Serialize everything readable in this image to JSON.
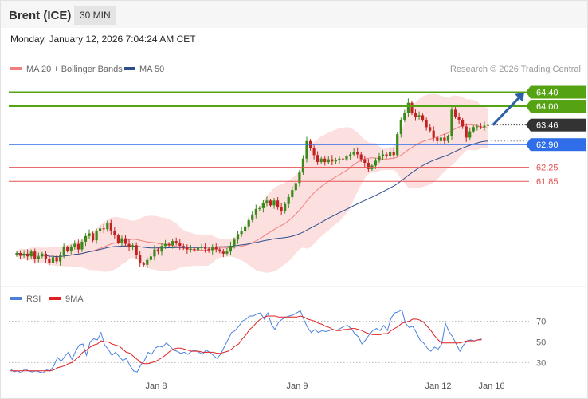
{
  "header": {
    "instrument": "Brent (ICE)",
    "timeframe": "30 MIN"
  },
  "datetime": "Monday, January 12, 2026 7:04:24 AM CET",
  "credit": "Research © 2026 Trading Central",
  "colors": {
    "up_candle": "#3a8a1a",
    "down_candle": "#c22222",
    "ma20": "#f08080",
    "bands_fill": "#fbd6d6",
    "ma50": "#2d4f8e",
    "resistance": "#55a313",
    "pivot": "#2f6ee8",
    "support": "#e45555",
    "current_price": "#333333",
    "rsi": "#4a7fe0",
    "rsi_ma": "#e02020",
    "arrow": "#2d5fa8"
  },
  "chart_data": [
    {
      "type": "candlestick",
      "legend": [
        {
          "name": "MA 20 + Bollinger Bands",
          "color": "#f08080"
        },
        {
          "name": "MA 50",
          "color": "#2d4f8e"
        }
      ],
      "ylim": [
        59.0,
        64.8
      ],
      "levels": [
        {
          "value": 64.4,
          "label": "64.40",
          "kind": "resistance"
        },
        {
          "value": 64.0,
          "label": "64.00",
          "kind": "resistance"
        },
        {
          "value": 63.46,
          "label": "63.46",
          "kind": "current"
        },
        {
          "value": 62.9,
          "label": "62.90",
          "kind": "pivot"
        },
        {
          "value": 62.25,
          "label": "62.25",
          "kind": "support"
        },
        {
          "value": 61.85,
          "label": "61.85",
          "kind": "support"
        }
      ],
      "x_labels": [
        "Jan 8",
        "Jan 9",
        "Jan 12",
        "Jan 16"
      ],
      "close": [
        59.8,
        59.72,
        59.78,
        59.7,
        59.84,
        59.62,
        59.7,
        59.78,
        59.62,
        59.52,
        59.68,
        59.56,
        59.74,
        59.96,
        59.86,
        59.96,
        60.06,
        59.9,
        60.12,
        60.28,
        60.36,
        60.16,
        60.42,
        60.5,
        60.48,
        60.66,
        60.44,
        60.3,
        60.1,
        60.22,
        60.06,
        59.96,
        60.02,
        59.74,
        59.5,
        59.46,
        59.6,
        59.7,
        59.9,
        59.84,
        60.0,
        60.06,
        60.02,
        60.14,
        60.08,
        60.0,
        59.96,
        59.9,
        59.92,
        59.88,
        59.94,
        59.96,
        59.92,
        59.88,
        59.96,
        59.9,
        59.84,
        59.78,
        59.84,
        60.0,
        60.18,
        60.34,
        60.42,
        60.56,
        60.74,
        60.9,
        61.06,
        61.08,
        61.22,
        61.3,
        61.16,
        61.3,
        61.1,
        61.0,
        61.2,
        61.4,
        61.6,
        61.8,
        62.1,
        62.5,
        63.0,
        62.8,
        62.6,
        62.4,
        62.5,
        62.4,
        62.48,
        62.42,
        62.46,
        62.5,
        62.48,
        62.56,
        62.62,
        62.7,
        62.62,
        62.48,
        62.38,
        62.2,
        62.3,
        62.44,
        62.56,
        62.62,
        62.58,
        62.7,
        62.6,
        63.2,
        63.6,
        63.8,
        64.1,
        63.82,
        63.7,
        63.74,
        63.6,
        63.4,
        63.3,
        63.1,
        63.0,
        63.1,
        63.0,
        63.14,
        63.9,
        63.7,
        63.6,
        63.42,
        63.1,
        63.28,
        63.4,
        63.42,
        63.4,
        63.44,
        63.46
      ],
      "rsi": {
        "name": "RSI",
        "ma_name": "9MA",
        "ylim": [
          18,
          85
        ],
        "ticks": [
          70,
          50,
          30
        ],
        "values": [
          24,
          21,
          22,
          20,
          24,
          22,
          21,
          22,
          21,
          20,
          23,
          22,
          27,
          35,
          31,
          36,
          40,
          33,
          41,
          47,
          48,
          37,
          50,
          53,
          52,
          59,
          47,
          43,
          37,
          40,
          36,
          32,
          34,
          27,
          22,
          21,
          28,
          32,
          40,
          38,
          44,
          46,
          45,
          49,
          46,
          42,
          41,
          39,
          40,
          38,
          41,
          42,
          40,
          38,
          42,
          40,
          37,
          34,
          38,
          45,
          52,
          59,
          61,
          65,
          70,
          72,
          75,
          75,
          77,
          78,
          72,
          78,
          67,
          62,
          69,
          72,
          74,
          75,
          76,
          78,
          80,
          71,
          64,
          59,
          62,
          59,
          61,
          60,
          61,
          62,
          61,
          63,
          65,
          66,
          63,
          58,
          55,
          48,
          52,
          57,
          61,
          63,
          61,
          66,
          61,
          73,
          78,
          79,
          81,
          68,
          64,
          65,
          59,
          52,
          49,
          44,
          41,
          45,
          43,
          48,
          68,
          60,
          55,
          48,
          41,
          47,
          51,
          52,
          51,
          52,
          53
        ],
        "ma_values": [
          22,
          22,
          22,
          22,
          22,
          22,
          22,
          22,
          22,
          22,
          22,
          22,
          23,
          25,
          26,
          27,
          29,
          30,
          33,
          36,
          40,
          42,
          45,
          47,
          48,
          51,
          50,
          50,
          48,
          47,
          46,
          43,
          40,
          39,
          36,
          33,
          30,
          29,
          29,
          30,
          31,
          33,
          35,
          38,
          41,
          43,
          44,
          44,
          43,
          42,
          41,
          41,
          41,
          40,
          40,
          40,
          40,
          39,
          39,
          40,
          41,
          43,
          46,
          48,
          53,
          57,
          62,
          65,
          69,
          72,
          74,
          75,
          75,
          75,
          74,
          74,
          74,
          74,
          74,
          74,
          75,
          74,
          72,
          71,
          70,
          68,
          67,
          65,
          64,
          62,
          61,
          61,
          62,
          62,
          63,
          63,
          62,
          61,
          59,
          58,
          57,
          57,
          57,
          58,
          58,
          61,
          63,
          65,
          68,
          69,
          70,
          72,
          72,
          71,
          69,
          65,
          61,
          56,
          52,
          49,
          49,
          49,
          49,
          49,
          49,
          50,
          51,
          51,
          51,
          52,
          52
        ]
      }
    }
  ]
}
